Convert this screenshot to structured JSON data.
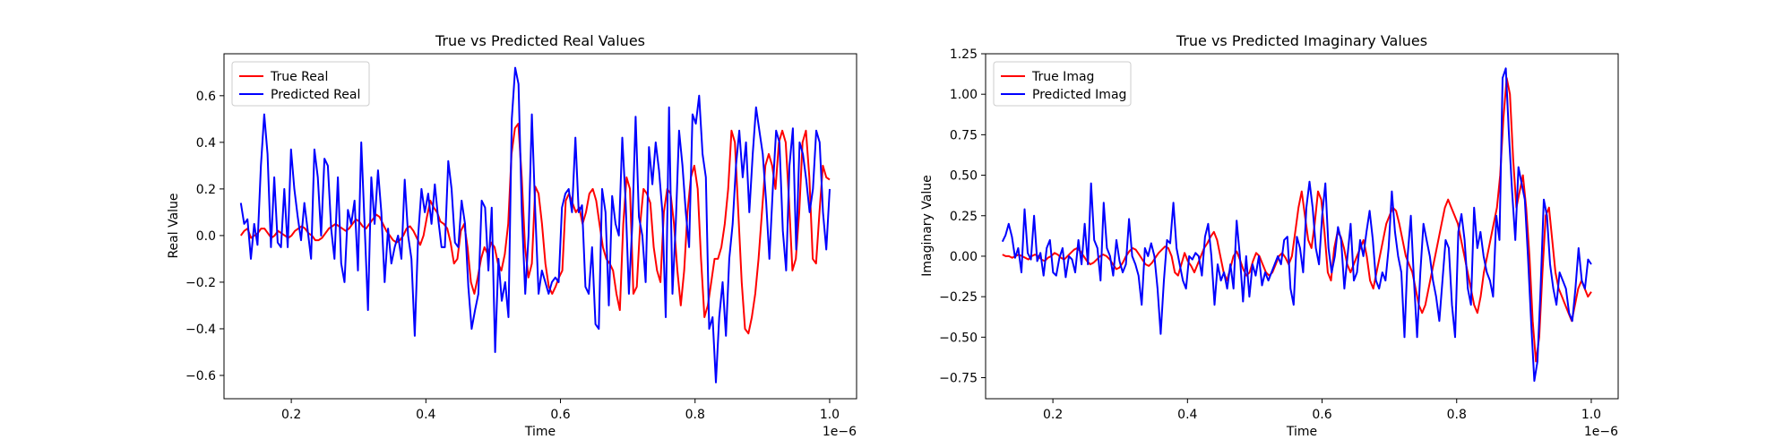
{
  "chart_data": [
    {
      "type": "line",
      "title": "True vs Predicted Real Values",
      "xlabel": "Time",
      "ylabel": "Real Value",
      "x_offset_label": "1e−6",
      "xlim": [
        0.1,
        1.04
      ],
      "ylim": [
        -0.7,
        0.78
      ],
      "x_ticks": [
        0.2,
        0.4,
        0.6,
        0.8,
        1.0
      ],
      "x_tick_labels": [
        "0.2",
        "0.4",
        "0.6",
        "0.8",
        "1.0"
      ],
      "y_ticks": [
        -0.6,
        -0.4,
        -0.2,
        0.0,
        0.2,
        0.4,
        0.6
      ],
      "y_tick_labels": [
        "−0.6",
        "−0.4",
        "−0.2",
        "0.0",
        "0.2",
        "0.4",
        "0.6"
      ],
      "grid": false,
      "legend": "upper-left",
      "x_range": [
        0.125,
        1.0
      ],
      "series": [
        {
          "name": "True Real",
          "color": "#ff0000",
          "values": [
            0.0,
            0.02,
            0.03,
            -0.01,
            0.0,
            0.01,
            0.03,
            0.03,
            0.01,
            -0.01,
            0.0,
            0.02,
            0.01,
            0.0,
            -0.01,
            0.0,
            0.02,
            0.03,
            0.04,
            0.03,
            0.01,
            0.0,
            -0.02,
            -0.02,
            -0.01,
            0.01,
            0.03,
            0.04,
            0.05,
            0.04,
            0.03,
            0.02,
            0.03,
            0.05,
            0.07,
            0.06,
            0.04,
            0.03,
            0.05,
            0.07,
            0.09,
            0.08,
            0.05,
            0.02,
            0.0,
            -0.02,
            -0.03,
            -0.02,
            0.0,
            0.03,
            0.04,
            0.02,
            -0.01,
            -0.04,
            0.0,
            0.08,
            0.15,
            0.12,
            0.1,
            0.06,
            0.05,
            0.03,
            -0.03,
            -0.12,
            -0.1,
            0.02,
            0.05,
            -0.05,
            -0.2,
            -0.25,
            -0.18,
            -0.1,
            -0.05,
            -0.08,
            -0.03,
            -0.05,
            -0.12,
            -0.15,
            -0.08,
            0.05,
            0.35,
            0.46,
            0.48,
            0.25,
            -0.05,
            -0.18,
            -0.12,
            0.21,
            0.18,
            0.05,
            -0.12,
            -0.22,
            -0.25,
            -0.22,
            -0.18,
            -0.15,
            0.15,
            0.18,
            0.14,
            0.1,
            0.12,
            0.05,
            0.1,
            0.18,
            0.2,
            0.15,
            0.05,
            -0.05,
            -0.1,
            -0.12,
            -0.15,
            -0.25,
            -0.32,
            0.05,
            0.25,
            0.2,
            -0.25,
            -0.22,
            0.05,
            0.2,
            0.18,
            0.14,
            -0.05,
            -0.15,
            -0.2,
            0.1,
            0.2,
            0.18,
            0.05,
            -0.15,
            -0.3,
            -0.15,
            0.1,
            0.25,
            0.3,
            0.2,
            -0.1,
            -0.35,
            -0.3,
            -0.2,
            -0.1,
            -0.1,
            -0.05,
            0.05,
            0.2,
            0.45,
            0.4,
            0.1,
            -0.2,
            -0.4,
            -0.42,
            -0.35,
            -0.25,
            -0.1,
            0.1,
            0.3,
            0.35,
            0.3,
            0.2,
            0.4,
            0.45,
            0.4,
            0.15,
            -0.15,
            -0.1,
            0.1,
            0.4,
            0.45,
            0.25,
            -0.1,
            -0.12,
            0.1,
            0.3,
            0.25,
            0.24
          ]
        },
        {
          "name": "Predicted Real",
          "color": "#0000ff",
          "values": [
            0.14,
            0.05,
            0.07,
            -0.1,
            0.05,
            -0.04,
            0.3,
            0.52,
            0.35,
            -0.05,
            0.25,
            -0.03,
            -0.05,
            0.2,
            -0.05,
            0.37,
            0.2,
            0.08,
            -0.02,
            0.14,
            0.02,
            -0.1,
            0.37,
            0.25,
            0.0,
            0.33,
            0.3,
            0.03,
            -0.1,
            0.25,
            -0.12,
            -0.2,
            0.11,
            0.05,
            0.15,
            -0.15,
            0.4,
            0.05,
            -0.32,
            0.25,
            0.05,
            0.28,
            0.1,
            -0.2,
            0.03,
            -0.12,
            -0.05,
            0.0,
            -0.1,
            0.24,
            0.0,
            -0.1,
            -0.43,
            0.0,
            0.2,
            0.1,
            0.18,
            0.05,
            0.22,
            0.07,
            -0.05,
            -0.05,
            0.32,
            0.2,
            -0.03,
            -0.05,
            0.15,
            0.05,
            -0.22,
            -0.4,
            -0.32,
            -0.25,
            0.15,
            0.12,
            -0.15,
            0.12,
            -0.5,
            -0.1,
            -0.28,
            -0.2,
            -0.35,
            0.5,
            0.72,
            0.65,
            0.1,
            -0.25,
            0.0,
            0.52,
            0.1,
            -0.25,
            -0.15,
            -0.2,
            -0.25,
            -0.2,
            -0.18,
            -0.2,
            0.12,
            0.18,
            0.2,
            0.1,
            0.42,
            0.1,
            0.13,
            -0.22,
            -0.25,
            -0.05,
            -0.38,
            -0.4,
            0.2,
            0.1,
            -0.3,
            0.17,
            0.05,
            0.0,
            0.42,
            0.15,
            -0.25,
            0.05,
            0.51,
            0.08,
            0.0,
            -0.2,
            0.38,
            0.22,
            0.4,
            0.28,
            0.1,
            -0.35,
            0.55,
            -0.25,
            0.05,
            0.45,
            0.3,
            0.1,
            -0.05,
            0.52,
            0.48,
            0.6,
            0.35,
            0.25,
            -0.4,
            -0.35,
            -0.63,
            -0.35,
            -0.2,
            -0.43,
            -0.1,
            0.05,
            0.3,
            0.45,
            0.25,
            0.4,
            0.1,
            0.35,
            0.55,
            0.45,
            0.35,
            0.15,
            -0.1,
            0.2,
            0.45,
            0.4,
            0.02,
            -0.15,
            0.3,
            0.46,
            -0.06,
            0.4,
            0.35,
            0.24,
            0.1,
            0.2,
            0.45,
            0.4,
            0.1,
            -0.06,
            0.2
          ]
        }
      ]
    },
    {
      "type": "line",
      "title": "True vs Predicted Imaginary Values",
      "xlabel": "Time",
      "ylabel": "Imaginary Value",
      "x_offset_label": "1e−6",
      "xlim": [
        0.1,
        1.04
      ],
      "ylim": [
        -0.88,
        1.25
      ],
      "x_ticks": [
        0.2,
        0.4,
        0.6,
        0.8,
        1.0
      ],
      "x_tick_labels": [
        "0.2",
        "0.4",
        "0.6",
        "0.8",
        "1.0"
      ],
      "y_ticks": [
        -0.75,
        -0.5,
        -0.25,
        0.0,
        0.25,
        0.5,
        0.75,
        1.0,
        1.25
      ],
      "y_tick_labels": [
        "−0.75",
        "−0.50",
        "−0.25",
        "0.00",
        "0.25",
        "0.50",
        "0.75",
        "1.00",
        "1.25"
      ],
      "grid": false,
      "legend": "upper-left",
      "x_range": [
        0.125,
        1.0
      ],
      "series": [
        {
          "name": "True Imag",
          "color": "#ff0000",
          "values": [
            0.01,
            0.0,
            0.0,
            -0.01,
            0.0,
            0.01,
            0.0,
            -0.01,
            -0.02,
            0.0,
            0.01,
            0.0,
            -0.02,
            -0.03,
            -0.01,
            0.0,
            0.02,
            0.01,
            -0.01,
            -0.02,
            0.0,
            0.02,
            0.04,
            0.05,
            0.03,
            0.0,
            -0.03,
            -0.05,
            -0.04,
            -0.02,
            0.0,
            0.01,
            0.0,
            -0.02,
            -0.05,
            -0.08,
            -0.07,
            -0.04,
            0.0,
            0.03,
            0.05,
            0.04,
            0.01,
            -0.02,
            -0.05,
            -0.06,
            -0.04,
            -0.01,
            0.02,
            0.04,
            0.06,
            0.05,
            0.0,
            -0.1,
            -0.12,
            -0.05,
            0.02,
            -0.03,
            -0.06,
            -0.1,
            -0.05,
            0.0,
            0.05,
            0.08,
            0.12,
            0.15,
            0.1,
            0.0,
            -0.1,
            -0.15,
            -0.08,
            0.0,
            0.03,
            -0.02,
            -0.08,
            -0.12,
            -0.1,
            -0.03,
            0.02,
            0.0,
            -0.05,
            -0.1,
            -0.12,
            -0.1,
            -0.05,
            0.0,
            0.02,
            -0.01,
            -0.05,
            0.0,
            0.15,
            0.3,
            0.4,
            0.25,
            0.1,
            0.05,
            0.2,
            0.4,
            0.35,
            0.15,
            -0.1,
            -0.15,
            0.05,
            0.15,
            0.12,
            0.05,
            -0.05,
            -0.1,
            -0.05,
            0.0,
            0.05,
            0.1,
            0.0,
            -0.15,
            -0.2,
            -0.1,
            0.0,
            0.1,
            0.2,
            0.25,
            0.3,
            0.28,
            0.2,
            0.1,
            0.0,
            -0.05,
            -0.1,
            -0.2,
            -0.3,
            -0.35,
            -0.3,
            -0.2,
            -0.1,
            0.0,
            0.1,
            0.2,
            0.3,
            0.35,
            0.3,
            0.25,
            0.2,
            0.1,
            0.0,
            -0.1,
            -0.2,
            -0.3,
            -0.35,
            -0.25,
            -0.1,
            0.0,
            0.1,
            0.2,
            0.3,
            0.5,
            0.85,
            1.1,
            1.0,
            0.6,
            0.3,
            0.4,
            0.5,
            0.3,
            0.0,
            -0.4,
            -0.65,
            -0.5,
            -0.1,
            0.25,
            0.3,
            0.1,
            -0.1,
            -0.2,
            -0.25,
            -0.3,
            -0.35,
            -0.4,
            -0.3,
            -0.2,
            -0.15,
            -0.2,
            -0.25,
            -0.22
          ]
        },
        {
          "name": "Predicted Imag",
          "color": "#0000ff",
          "values": [
            0.09,
            0.13,
            0.2,
            0.12,
            -0.01,
            0.05,
            -0.1,
            0.29,
            0.02,
            -0.02,
            0.25,
            -0.03,
            0.02,
            -0.12,
            0.05,
            0.1,
            -0.1,
            -0.12,
            -0.01,
            0.05,
            -0.13,
            0.0,
            -0.02,
            -0.1,
            0.1,
            -0.05,
            0.2,
            -0.05,
            0.45,
            0.1,
            0.05,
            -0.15,
            0.33,
            0.05,
            0.0,
            -0.12,
            0.1,
            -0.03,
            -0.1,
            -0.05,
            0.23,
            0.0,
            -0.05,
            -0.12,
            -0.3,
            0.05,
            0.0,
            0.08,
            0.0,
            -0.2,
            -0.48,
            -0.15,
            0.1,
            0.08,
            0.33,
            0.05,
            -0.05,
            -0.15,
            -0.2,
            0.0,
            -0.02,
            0.02,
            0.0,
            -0.12,
            0.12,
            0.2,
            0.0,
            -0.3,
            -0.05,
            -0.15,
            -0.1,
            -0.2,
            -0.05,
            -0.2,
            0.22,
            0.0,
            -0.28,
            0.0,
            -0.25,
            -0.05,
            -0.12,
            0.0,
            -0.18,
            -0.1,
            -0.15,
            -0.1,
            -0.05,
            0.0,
            -0.05,
            0.1,
            0.12,
            -0.2,
            -0.3,
            0.12,
            0.05,
            -0.1,
            0.3,
            0.46,
            0.3,
            0.05,
            -0.05,
            0.25,
            0.45,
            0.05,
            -0.1,
            0.0,
            0.18,
            0.1,
            -0.2,
            0.0,
            0.2,
            -0.15,
            -0.1,
            0.1,
            0.0,
            0.15,
            0.28,
            0.1,
            -0.15,
            -0.2,
            -0.1,
            -0.15,
            0.05,
            0.4,
            0.15,
            0.0,
            -0.1,
            -0.5,
            0.0,
            0.25,
            -0.15,
            -0.5,
            -0.1,
            0.2,
            0.1,
            0.0,
            -0.15,
            -0.25,
            -0.4,
            -0.15,
            0.1,
            0.05,
            -0.3,
            -0.5,
            0.15,
            0.26,
            0.1,
            -0.2,
            -0.3,
            0.3,
            0.05,
            0.15,
            0.0,
            -0.1,
            -0.15,
            -0.25,
            0.25,
            0.1,
            1.1,
            1.16,
            0.75,
            0.4,
            0.1,
            0.55,
            0.45,
            0.35,
            0.0,
            -0.4,
            -0.77,
            -0.65,
            -0.2,
            0.35,
            0.25,
            -0.05,
            -0.2,
            -0.3,
            -0.1,
            -0.15,
            -0.2,
            -0.35,
            -0.4,
            -0.2,
            0.05,
            -0.15,
            -0.2,
            -0.02,
            -0.05
          ]
        }
      ]
    }
  ]
}
